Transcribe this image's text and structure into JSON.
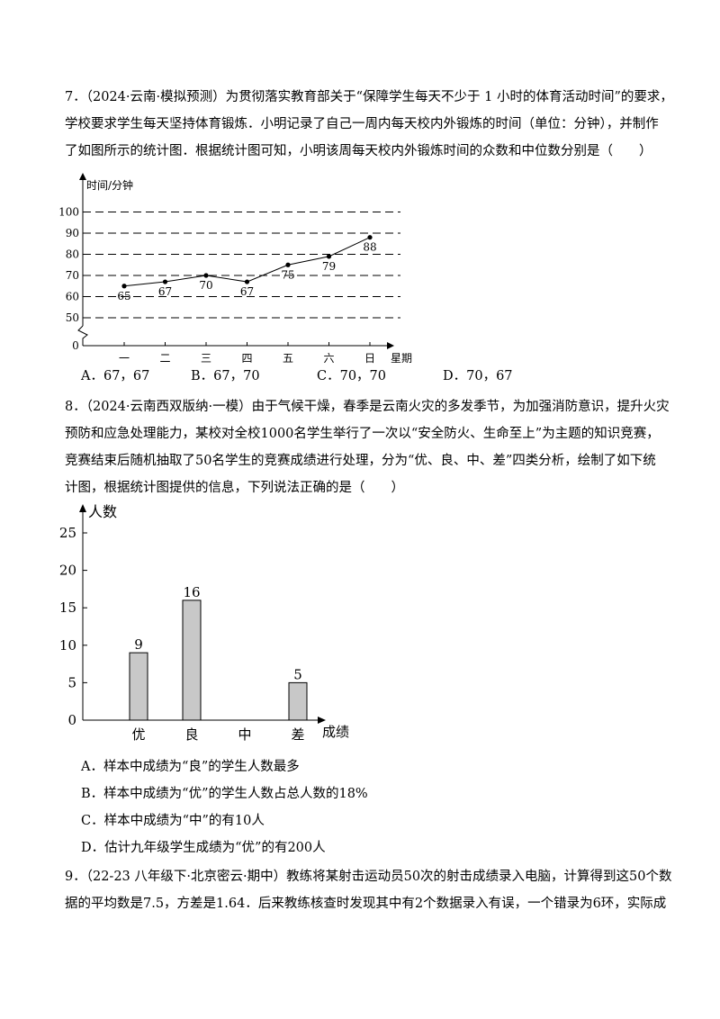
{
  "q7": {
    "lines": [
      "7．（2024·云南·模拟预测）为贯彻落实教育部关于“保障学生每天不少于 1 小时的体育活动时间”的要求，",
      "学校要求学生每天坚持体育锻炼．小明记录了自己一周内每天校内外锻炼的时间（单位：分钟），并制作",
      "了如图所示的统计图．根据统计图可知，小明该周每天校内外锻炼时间的众数和中位数分别是（　　）"
    ],
    "options": [
      "A．67，67",
      "B．67，70",
      "C．70，70",
      "D．70，67"
    ]
  },
  "q8": {
    "lines": [
      "8．（2024·云南西双版纳·一模）由于气候干燥，春季是云南火灾的多发季节，为加强消防意识，提升火灾",
      "预防和应急处理能力，某校对全校1000名学生举行了一次以“安全防火、生命至上”为主题的知识竞赛，",
      "竞赛结束后随机抽取了50名学生的竞赛成绩进行处理，分为“优、良、中、差”四类分析，绘制了如下统",
      "计图，根据统计图提供的信息，下列说法正确的是（　　）"
    ],
    "options": [
      "A．样本中成绩为“良”的学生人数最多",
      "B．样本中成绩为“优”的学生人数占总人数的18%",
      "C．样本中成绩为“中”的有10人",
      "D．估计九年级学生成绩为“优”的有200人"
    ]
  },
  "q9": {
    "lines": [
      "9．（22-23 八年级下·北京密云·期中）教练将某射击运动员50次的射击成绩录入电脑，计算得到这50个数",
      "据的平均数是7.5，方差是1.64．后来教练核查时发现其中有2个数据录入有误，一个错录为6环，实际成"
    ]
  },
  "chart_data": [
    {
      "type": "line",
      "ylabel": "时间/分钟",
      "xlabel": "星期",
      "categories": [
        "一",
        "二",
        "三",
        "四",
        "五",
        "六",
        "日"
      ],
      "values": [
        65,
        67,
        70,
        67,
        75,
        79,
        88
      ],
      "yticks": [
        50,
        60,
        70,
        80,
        90,
        100
      ],
      "origin_label": "0",
      "axis_break": true,
      "grid": "dashed horizontal at ticks",
      "point_labels": [
        "65",
        "67",
        "70",
        "67",
        "75",
        "79",
        "88"
      ]
    },
    {
      "type": "bar",
      "ylabel": "人数",
      "xlabel": "成绩",
      "categories": [
        "优",
        "良",
        "中",
        "差"
      ],
      "values": [
        9,
        16,
        0,
        5
      ],
      "value_labels": [
        "9",
        "16",
        "",
        "5"
      ],
      "yticks": [
        0,
        5,
        10,
        15,
        20,
        25
      ],
      "ylim": [
        0,
        27
      ],
      "bar_color": "#c8c8c8"
    }
  ]
}
